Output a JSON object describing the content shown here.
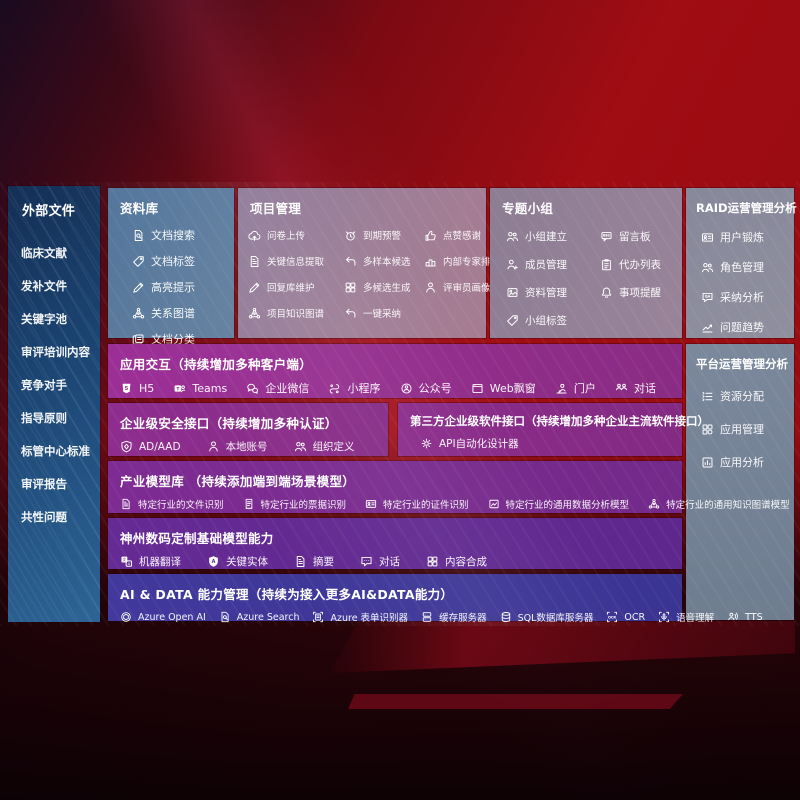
{
  "colors": {
    "slide_background_red": "#9a0c13",
    "sidebar_blue": "#1c4674",
    "repository_steel_blue": "#50749a",
    "top_panel_gray": "#8f7b99",
    "row_magenta": "#9c2f97",
    "row_purple": "#7e2b93",
    "row_violet": "#662a94",
    "row_indigo": "#41399c",
    "text": "#ffffff"
  },
  "sidebar": {
    "title": "外部文件",
    "items": [
      "临床文献",
      "发补文件",
      "关键字池",
      "审评培训内容",
      "竞争对手",
      "指导原则",
      "标管中心标准",
      "审评报告",
      "共性问题"
    ]
  },
  "panels": {
    "repository": {
      "title": "资料库",
      "items": [
        {
          "label": "文档搜索",
          "icon": "doc-search-icon"
        },
        {
          "label": "文档标签",
          "icon": "tag-icon"
        },
        {
          "label": "高亮提示",
          "icon": "highlight-pencil-icon"
        },
        {
          "label": "关系图谱",
          "icon": "relation-graph-icon"
        },
        {
          "label": "文档分类",
          "icon": "doc-classify-icon"
        }
      ]
    },
    "project": {
      "title": "项目管理",
      "items": [
        {
          "label": "问卷上传",
          "icon": "cloud-upload-icon"
        },
        {
          "label": "到期预警",
          "icon": "alarm-icon"
        },
        {
          "label": "点赞感谢",
          "icon": "thumbs-up-icon"
        },
        {
          "label": "关键信息提取",
          "icon": "doc-extract-icon"
        },
        {
          "label": "多样本候选",
          "icon": "multi-sample-arrow-icon"
        },
        {
          "label": "内部专家排名",
          "icon": "expert-ranking-icon"
        },
        {
          "label": "回复库维护",
          "icon": "reply-edit-icon"
        },
        {
          "label": "多候选生成",
          "icon": "multi-generate-grid-icon"
        },
        {
          "label": "评审员画像",
          "icon": "reviewer-person-icon"
        },
        {
          "label": "项目知识图谱",
          "icon": "knowledge-graph-icon"
        },
        {
          "label": "一键采纳",
          "icon": "adopt-arrow-icon"
        }
      ]
    },
    "topicgroup": {
      "title": "专题小组",
      "items": [
        {
          "label": "小组建立",
          "icon": "group-people-icon"
        },
        {
          "label": "留言板",
          "icon": "bbs-board-icon"
        },
        {
          "label": "成员管理",
          "icon": "member-person-icon"
        },
        {
          "label": "代办列表",
          "icon": "todo-clipboard-icon"
        },
        {
          "label": "资料管理",
          "icon": "material-image-icon"
        },
        {
          "label": "事项提醒",
          "icon": "bell-icon"
        },
        {
          "label": "小组标签",
          "icon": "tag-icon"
        }
      ]
    },
    "raid": {
      "title": "RAID运营管理分析",
      "items": [
        {
          "label": "用户锻炼",
          "icon": "user-card-icon"
        },
        {
          "label": "角色管理",
          "icon": "role-people-icon"
        },
        {
          "label": "采纳分析",
          "icon": "qa-bubble-icon"
        },
        {
          "label": "问题趋势",
          "icon": "trend-chart-icon"
        }
      ]
    },
    "platform": {
      "title": "平台运营管理分析",
      "items": [
        {
          "label": "资源分配",
          "icon": "resource-list-icon"
        },
        {
          "label": "应用管理",
          "icon": "app-grid-icon"
        },
        {
          "label": "应用分析",
          "icon": "app-analysis-icon"
        }
      ]
    },
    "interaction": {
      "title": "应用交互（持续增加多种客户端）",
      "items": [
        {
          "label": "H5",
          "icon": "h5-icon"
        },
        {
          "label": "Teams",
          "icon": "teams-icon"
        },
        {
          "label": "企业微信",
          "icon": "wechat-work-icon"
        },
        {
          "label": "小程序",
          "icon": "miniprogram-icon"
        },
        {
          "label": "公众号",
          "icon": "official-account-icon"
        },
        {
          "label": "Web飘窗",
          "icon": "web-window-icon"
        },
        {
          "label": "门户",
          "icon": "portal-icon"
        },
        {
          "label": "对话",
          "icon": "dialog-icon"
        }
      ]
    },
    "security": {
      "title": "企业级安全接口（持续增加多种认证）",
      "items": [
        {
          "label": "AD/AAD",
          "icon": "ad-shield-icon"
        },
        {
          "label": "本地账号",
          "icon": "local-account-icon"
        },
        {
          "label": "组织定义",
          "icon": "org-people-icon"
        }
      ]
    },
    "thirdparty": {
      "title": "第三方企业级软件接口（持续增加多种企业主流软件接口）",
      "items": [
        {
          "label": "API自动化设计器",
          "icon": "api-gear-icon"
        }
      ]
    },
    "industry": {
      "title": "产业模型库 （持续添加端到端场景模型）",
      "items": [
        {
          "label": "特定行业的文件识别",
          "icon": "file-recognition-icon"
        },
        {
          "label": "特定行业的票据识别",
          "icon": "receipt-recognition-icon"
        },
        {
          "label": "特定行业的证件识别",
          "icon": "id-card-icon"
        },
        {
          "label": "特定行业的通用数据分析模型",
          "icon": "data-analysis-model-icon"
        },
        {
          "label": "特定行业的通用知识图谱模型",
          "icon": "knowledge-graph-icon"
        }
      ]
    },
    "basemodel": {
      "title": "神州数码定制基础模型能力",
      "items": [
        {
          "label": "机器翻译",
          "icon": "translate-icon"
        },
        {
          "label": "关键实体",
          "icon": "entity-shield-icon"
        },
        {
          "label": "摘要",
          "icon": "summary-doc-icon"
        },
        {
          "label": "对话",
          "icon": "chat-icon"
        },
        {
          "label": "内容合成",
          "icon": "compose-grid-icon"
        }
      ]
    },
    "aidata": {
      "title": "AI & DATA 能力管理（持续为接入更多AI&DATA能力）",
      "items": [
        {
          "label": "Azure Open AI",
          "icon": "openai-icon"
        },
        {
          "label": "Azure Search",
          "icon": "azure-search-icon"
        },
        {
          "label": "Azure 表单识别器",
          "icon": "form-recognizer-icon"
        },
        {
          "label": "缓存服务器",
          "icon": "cache-server-icon"
        },
        {
          "label": "SQL数据库服务器",
          "icon": "sql-database-icon"
        },
        {
          "label": "OCR",
          "icon": "ocr-icon"
        },
        {
          "label": "语音理解",
          "icon": "speech-understanding-icon"
        },
        {
          "label": "TTS",
          "icon": "tts-icon"
        }
      ]
    }
  }
}
